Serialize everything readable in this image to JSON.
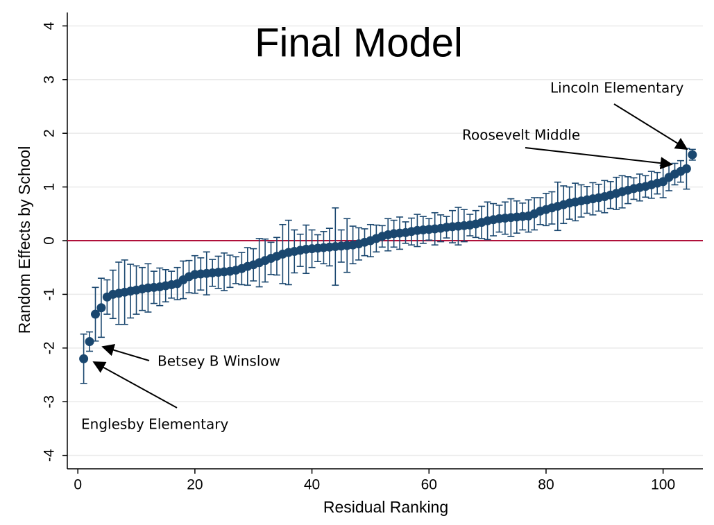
{
  "chart_data": {
    "type": "scatter",
    "title": "Final Model",
    "x_label": "Residual Ranking",
    "y_label": "Random Effects by School",
    "x": [
      1,
      2,
      3,
      4,
      5,
      6,
      7,
      8,
      9,
      10,
      11,
      12,
      13,
      14,
      15,
      16,
      17,
      18,
      19,
      20,
      21,
      22,
      23,
      24,
      25,
      26,
      27,
      28,
      29,
      30,
      31,
      32,
      33,
      34,
      35,
      36,
      37,
      38,
      39,
      40,
      41,
      42,
      43,
      44,
      45,
      46,
      47,
      48,
      49,
      50,
      51,
      52,
      53,
      54,
      55,
      56,
      57,
      58,
      59,
      60,
      61,
      62,
      63,
      64,
      65,
      66,
      67,
      68,
      69,
      70,
      71,
      72,
      73,
      74,
      75,
      76,
      77,
      78,
      79,
      80,
      81,
      82,
      83,
      84,
      85,
      86,
      87,
      88,
      89,
      90,
      91,
      92,
      93,
      94,
      95,
      96,
      97,
      98,
      99,
      100,
      101,
      102,
      103,
      104,
      105
    ],
    "values": [
      -2.2,
      -1.88,
      -1.37,
      -1.25,
      -1.05,
      -1.0,
      -0.98,
      -0.96,
      -0.94,
      -0.92,
      -0.9,
      -0.88,
      -0.87,
      -0.86,
      -0.84,
      -0.82,
      -0.8,
      -0.73,
      -0.67,
      -0.63,
      -0.62,
      -0.61,
      -0.6,
      -0.59,
      -0.58,
      -0.57,
      -0.55,
      -0.52,
      -0.48,
      -0.45,
      -0.41,
      -0.37,
      -0.33,
      -0.29,
      -0.25,
      -0.22,
      -0.2,
      -0.18,
      -0.16,
      -0.15,
      -0.14,
      -0.13,
      -0.12,
      -0.11,
      -0.1,
      -0.09,
      -0.08,
      -0.06,
      -0.03,
      0.0,
      0.04,
      0.08,
      0.11,
      0.13,
      0.14,
      0.15,
      0.17,
      0.19,
      0.2,
      0.21,
      0.22,
      0.23,
      0.25,
      0.26,
      0.27,
      0.28,
      0.29,
      0.31,
      0.34,
      0.37,
      0.39,
      0.41,
      0.42,
      0.43,
      0.44,
      0.45,
      0.46,
      0.5,
      0.55,
      0.58,
      0.61,
      0.64,
      0.67,
      0.7,
      0.72,
      0.74,
      0.76,
      0.78,
      0.8,
      0.82,
      0.85,
      0.88,
      0.91,
      0.94,
      0.97,
      0.99,
      1.01,
      1.04,
      1.07,
      1.1,
      1.18,
      1.24,
      1.29,
      1.34,
      1.6
    ],
    "errors": [
      0.46,
      0.18,
      0.5,
      0.55,
      0.32,
      0.45,
      0.58,
      0.6,
      0.5,
      0.45,
      0.4,
      0.45,
      0.3,
      0.35,
      0.3,
      0.25,
      0.3,
      0.35,
      0.3,
      0.35,
      0.3,
      0.4,
      0.25,
      0.3,
      0.35,
      0.3,
      0.25,
      0.3,
      0.35,
      0.3,
      0.45,
      0.4,
      0.3,
      0.35,
      0.55,
      0.6,
      0.4,
      0.3,
      0.45,
      0.35,
      0.25,
      0.3,
      0.35,
      0.72,
      0.3,
      0.5,
      0.35,
      0.3,
      0.25,
      0.3,
      0.25,
      0.2,
      0.3,
      0.25,
      0.3,
      0.2,
      0.25,
      0.3,
      0.25,
      0.2,
      0.3,
      0.25,
      0.2,
      0.3,
      0.35,
      0.3,
      0.2,
      0.25,
      0.3,
      0.35,
      0.3,
      0.25,
      0.3,
      0.35,
      0.3,
      0.25,
      0.3,
      0.3,
      0.25,
      0.3,
      0.3,
      0.45,
      0.35,
      0.3,
      0.35,
      0.3,
      0.25,
      0.3,
      0.25,
      0.3,
      0.25,
      0.3,
      0.3,
      0.25,
      0.2,
      0.25,
      0.2,
      0.25,
      0.2,
      0.3,
      0.25,
      0.2,
      0.2,
      0.38,
      0.1
    ],
    "color": "#1a476f",
    "hline": 0,
    "hline_color": "#b0103a",
    "xlim": [
      -1.8,
      106.8
    ],
    "xticks": [
      0,
      20,
      40,
      60,
      80,
      100
    ],
    "ylim": [
      -4.25,
      4.25
    ],
    "yticks": [
      4,
      3,
      2,
      1,
      0,
      -1,
      -2,
      -3,
      -4
    ],
    "grid": true,
    "annotations": [
      "Lincoln Elementary",
      "Roosevelt Middle",
      "Betsey B Winslow",
      "Englesby Elementary"
    ]
  }
}
